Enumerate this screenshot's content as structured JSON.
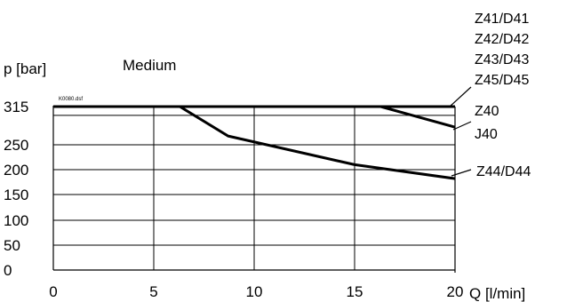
{
  "chart_data": {
    "type": "line",
    "xlabel": "Q [l/min]",
    "ylabel": "p [bar]",
    "subtitle": "Medium",
    "file_tag": "K0080.dsf",
    "xlim": [
      0,
      20
    ],
    "ylim": [
      0,
      315
    ],
    "x_ticks": [
      0,
      5,
      10,
      15,
      20
    ],
    "y_ticks": [
      0,
      50,
      100,
      150,
      200,
      250,
      315
    ],
    "grid": true,
    "series": [
      {
        "name": "Z41/D41 Z42/D42 Z43/D43 Z45/D45",
        "x": [
          0,
          20
        ],
        "y": [
          315,
          315
        ]
      },
      {
        "name": "Z40 J40",
        "x": [
          16.3,
          20
        ],
        "y": [
          315,
          280
        ]
      },
      {
        "name": "Z44/D44",
        "x": [
          6.3,
          8.7,
          15,
          20
        ],
        "y": [
          315,
          265,
          210,
          182
        ]
      }
    ],
    "legend_labels": [
      {
        "series": 0,
        "lines": [
          "Z41/D41",
          "Z42/D42",
          "Z43/D43",
          "Z45/D45"
        ]
      },
      {
        "series": 1,
        "lines": [
          "Z40",
          "J40"
        ]
      },
      {
        "series": 2,
        "lines": [
          "Z44/D44"
        ]
      }
    ]
  }
}
